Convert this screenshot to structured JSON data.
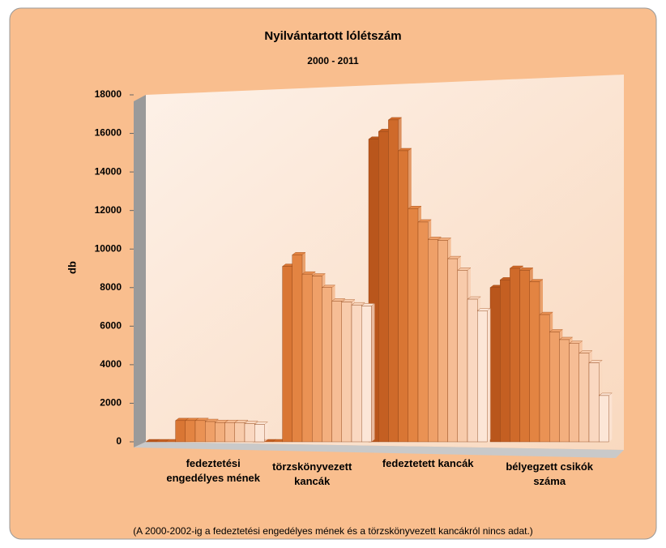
{
  "chart_data": {
    "type": "bar3d",
    "title": "Nyilvántartott lólétszám",
    "subtitle": "2000 - 2011",
    "y_label": "db",
    "note": "(A 2000-2002-ig a fedeztetési engedélyes mének és a törzskönyvezett kancákról nincs adat.)",
    "categories": [
      "fedeztetési engedélyes mének",
      "törzskönyvezett kancák",
      "fedeztetett kancák",
      "bélyegzett csikók száma"
    ],
    "series": [
      {
        "color": "#b9561c",
        "values": [
          0,
          0,
          15700,
          8000
        ]
      },
      {
        "color": "#c45f22",
        "values": [
          0,
          0,
          16100,
          8400
        ]
      },
      {
        "color": "#cf6a2a",
        "values": [
          0,
          0,
          16700,
          9000
        ]
      },
      {
        "color": "#d97634",
        "values": [
          1100,
          9100,
          15100,
          8900
        ]
      },
      {
        "color": "#e38442",
        "values": [
          1100,
          9700,
          12100,
          8300
        ]
      },
      {
        "color": "#ea9254",
        "values": [
          1100,
          8700,
          11400,
          6600
        ]
      },
      {
        "color": "#efa068",
        "values": [
          1050,
          8600,
          10500,
          5700
        ]
      },
      {
        "color": "#f3af7e",
        "values": [
          1000,
          8000,
          10450,
          5300
        ]
      },
      {
        "color": "#f6bd95",
        "values": [
          1000,
          7300,
          9500,
          5100
        ]
      },
      {
        "color": "#f8cbab",
        "values": [
          1000,
          7250,
          8900,
          4600
        ]
      },
      {
        "color": "#fad8c1",
        "values": [
          950,
          7100,
          7400,
          4100
        ]
      },
      {
        "color": "#fce6d7",
        "values": [
          900,
          7050,
          6800,
          2400
        ]
      }
    ],
    "ylim": [
      0,
      18000
    ],
    "yticks": [
      0,
      2000,
      4000,
      6000,
      8000,
      10000,
      12000,
      14000,
      16000,
      18000
    ],
    "grid": false
  }
}
